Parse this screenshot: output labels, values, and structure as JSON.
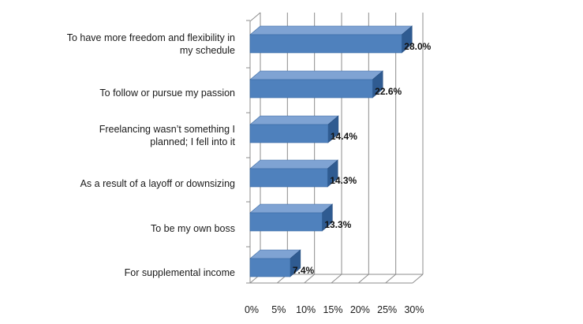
{
  "chart_data": {
    "type": "bar",
    "orientation": "horizontal",
    "categories": [
      "To have more freedom and flexibility in my schedule",
      "To follow or pursue my passion",
      "Freelancing wasn’t something I planned; I fell into it",
      "As a result of a layoff or downsizing",
      "To be my own boss",
      "For supplemental income"
    ],
    "category_lines": [
      [
        "To have more freedom and flexibility in",
        "my schedule"
      ],
      [
        "To follow or pursue my passion"
      ],
      [
        "Freelancing wasn’t something I",
        "planned; I fell into it"
      ],
      [
        "As a result of a layoff or downsizing"
      ],
      [
        "To be my own boss"
      ],
      [
        "For supplemental income"
      ]
    ],
    "values": [
      28.0,
      22.6,
      14.4,
      14.3,
      13.3,
      7.4
    ],
    "value_labels": [
      "28.0%",
      "22.6%",
      "14.4%",
      "14.3%",
      "13.3%",
      "7.4%"
    ],
    "xlim": [
      0,
      30
    ],
    "xticks": [
      0,
      5,
      10,
      15,
      20,
      25,
      30
    ],
    "xtick_labels": [
      "0%",
      "5%",
      "10%",
      "15%",
      "20%",
      "25%",
      "30%"
    ],
    "title": "",
    "xlabel": "",
    "ylabel": "",
    "grid": true,
    "style": "3d",
    "bar_color": "#4f81bd"
  }
}
